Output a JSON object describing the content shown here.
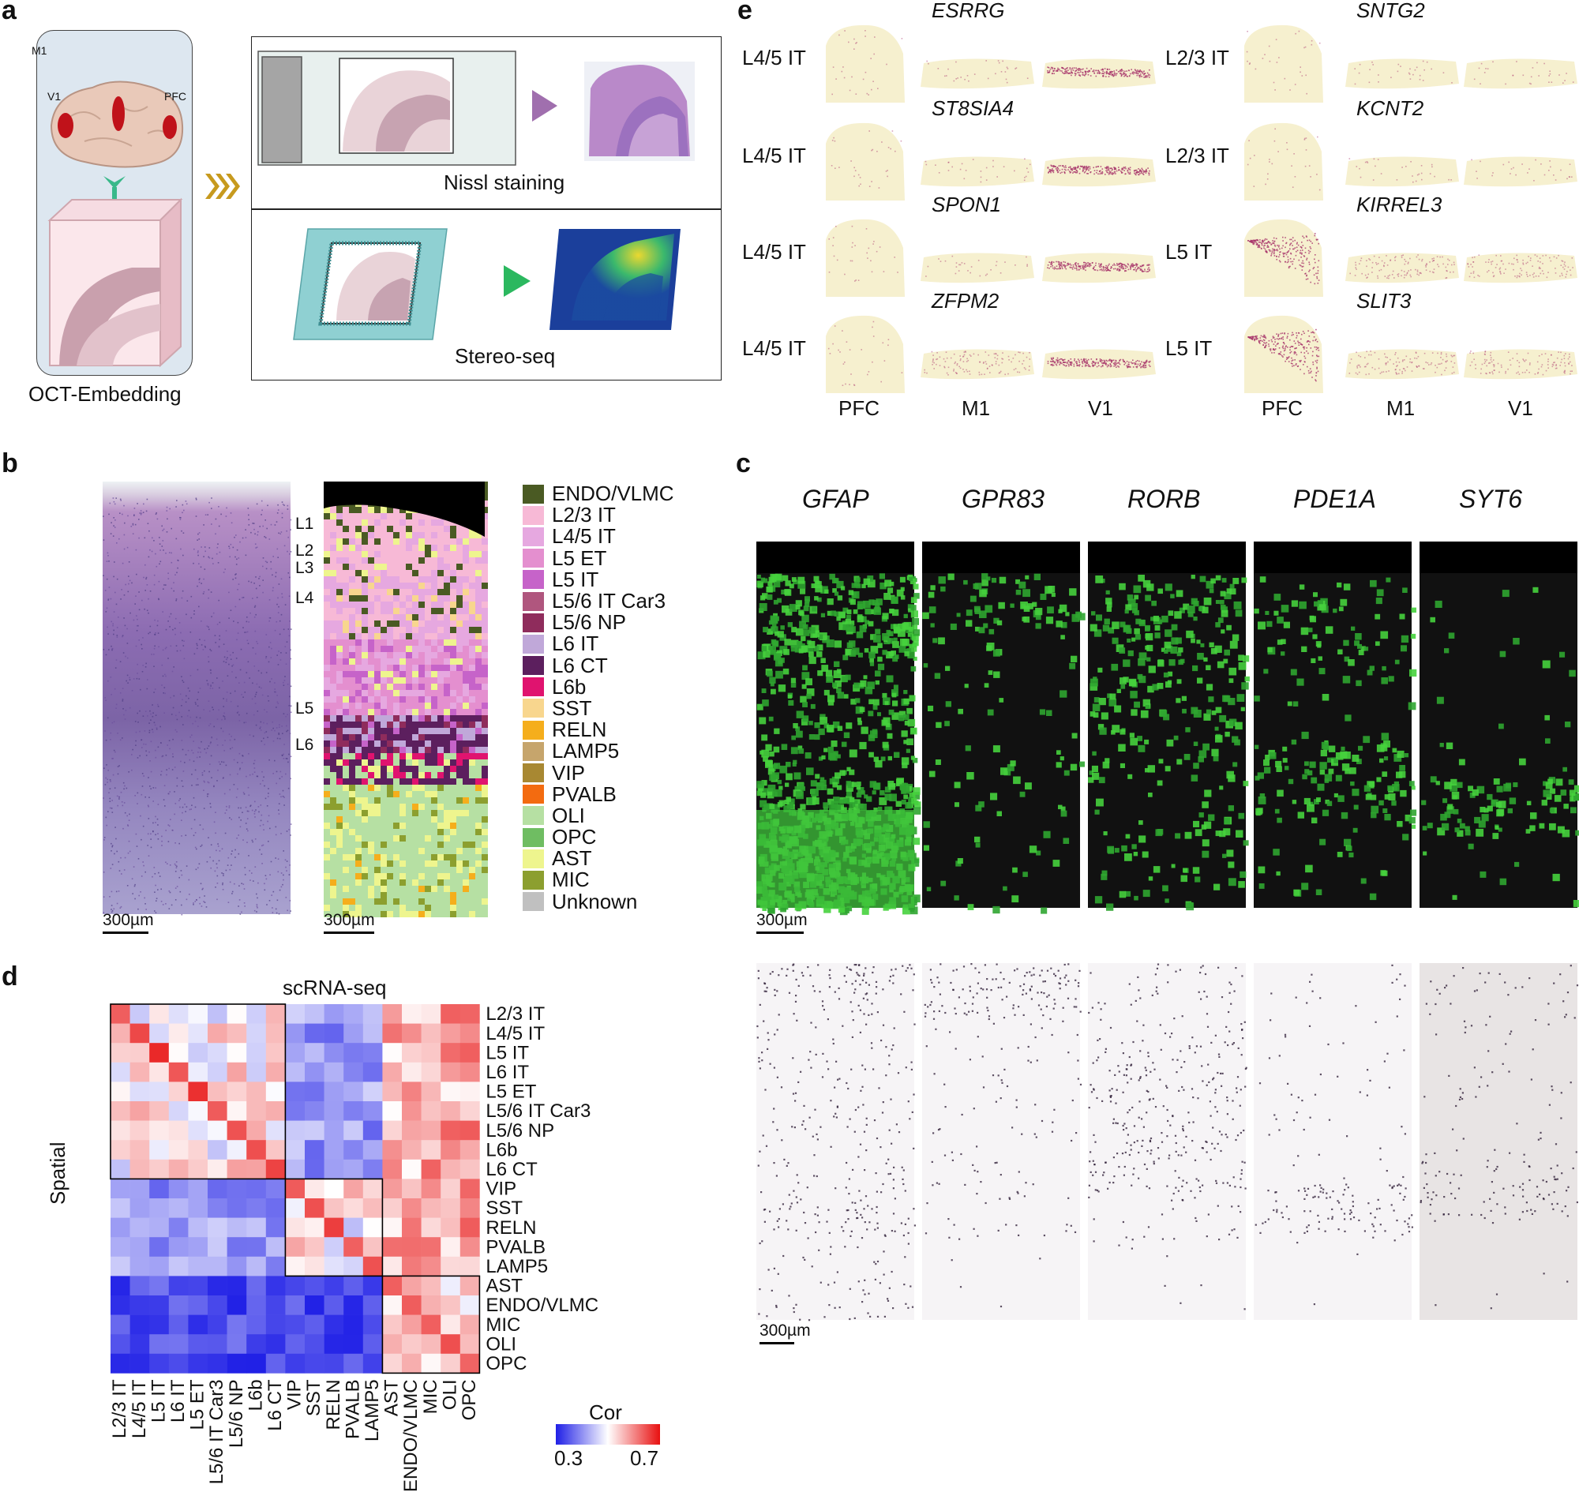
{
  "panels": {
    "a": {
      "letter": "a",
      "brain_regions": [
        "M1",
        "V1",
        "PFC"
      ],
      "embedding_label": "OCT-Embedding",
      "nissl_label": "Nissl staining",
      "stereo_label": "Stereo-seq"
    },
    "b": {
      "letter": "b",
      "layers": [
        "L1",
        "L2",
        "L3",
        "L4",
        "L5",
        "L6"
      ],
      "scale_label": "300µm",
      "legend": [
        {
          "label": "ENDO/VLMC",
          "color": "#4a5a23"
        },
        {
          "label": "L2/3 IT",
          "color": "#f7b9d6"
        },
        {
          "label": "L4/5 IT",
          "color": "#e6a8e0"
        },
        {
          "label": "L5 ET",
          "color": "#e48fcf"
        },
        {
          "label": "L5 IT",
          "color": "#c663c9"
        },
        {
          "label": "L5/6 IT Car3",
          "color": "#b0567e"
        },
        {
          "label": "L5/6 NP",
          "color": "#8f2c5c"
        },
        {
          "label": "L6 IT",
          "color": "#c0a8d9"
        },
        {
          "label": "L6 CT",
          "color": "#5c1f5e"
        },
        {
          "label": "L6b",
          "color": "#e0136f"
        },
        {
          "label": "SST",
          "color": "#f8d68e"
        },
        {
          "label": "RELN",
          "color": "#f5ae1c"
        },
        {
          "label": "LAMP5",
          "color": "#c6a56c"
        },
        {
          "label": "VIP",
          "color": "#a88832"
        },
        {
          "label": "PVALB",
          "color": "#f36b10"
        },
        {
          "label": "OLI",
          "color": "#b6e0a3"
        },
        {
          "label": "OPC",
          "color": "#6fbd62"
        },
        {
          "label": "AST",
          "color": "#eef58e"
        },
        {
          "label": "MIC",
          "color": "#8c9f2f"
        },
        {
          "label": "Unknown",
          "color": "#c0c0c0"
        }
      ]
    },
    "c": {
      "letter": "c",
      "genes": [
        "GFAP",
        "GPR83",
        "RORB",
        "PDE1A",
        "SYT6"
      ],
      "scale_label": "300µm"
    },
    "d": {
      "letter": "d",
      "top_title": "scRNA-seq",
      "side_title": "Spatial",
      "rows": [
        "L2/3 IT",
        "L4/5 IT",
        "L5 IT",
        "L6 IT",
        "L5 ET",
        "L5/6 IT Car3",
        "L5/6 NP",
        "L6b",
        "L6 CT",
        "VIP",
        "SST",
        "RELN",
        "PVALB",
        "LAMP5",
        "AST",
        "ENDO/VLMC",
        "MIC",
        "OLI",
        "OPC"
      ],
      "cols": [
        "L2/3 IT",
        "L4/5 IT",
        "L5 IT",
        "L6 IT",
        "L5 ET",
        "L5/6 IT Car3",
        "L5/6 NP",
        "L6b",
        "L6 CT",
        "VIP",
        "SST",
        "RELN",
        "PVALB",
        "LAMP5",
        "AST",
        "ENDO/VLMC",
        "MIC",
        "OLI",
        "OPC"
      ],
      "colorbar_title": "Cor",
      "colorbar_min": "0.3",
      "colorbar_max": "0.7"
    },
    "e": {
      "letter": "e",
      "left": {
        "genes": [
          "ESRRG",
          "ST8SIA4",
          "SPON1",
          "ZFPM2"
        ],
        "cell_types": [
          "L4/5 IT",
          "L4/5 IT",
          "L4/5 IT",
          "L4/5 IT"
        ],
        "regions": [
          "PFC",
          "M1",
          "V1"
        ]
      },
      "right": {
        "genes": [
          "SNTG2",
          "KCNT2",
          "KIRREL3",
          "SLIT3"
        ],
        "cell_types": [
          "L2/3 IT",
          "L2/3 IT",
          "L5 IT",
          "L5 IT"
        ],
        "regions": [
          "PFC",
          "M1",
          "V1"
        ]
      }
    }
  }
}
